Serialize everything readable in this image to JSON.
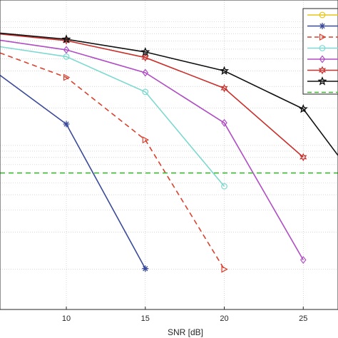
{
  "chart_data": {
    "type": "line",
    "xlabel": "SNR [dB]",
    "xlim": [
      5.8,
      27.2
    ],
    "ylim": [
      0,
      1
    ],
    "y_scale": "log",
    "grid": true,
    "legend_position": "top-right",
    "x_ticks": [
      {
        "value": 10,
        "label": "10"
      },
      {
        "value": 15,
        "label": "15"
      },
      {
        "value": 20,
        "label": "20"
      },
      {
        "value": 25,
        "label": "25"
      }
    ],
    "series": [
      {
        "color": "#e6c619",
        "marker": "circle",
        "dash": "solid",
        "points": []
      },
      {
        "color": "#3a4a9a",
        "marker": "asterisk",
        "dash": "solid",
        "points": [
          [
            5.8,
            0.757
          ],
          [
            10,
            0.599
          ],
          [
            15,
            0.132
          ]
        ]
      },
      {
        "color": "#d9412e",
        "marker": "triangle-right",
        "dash": "dashed",
        "points": [
          [
            5.8,
            0.829
          ],
          [
            10,
            0.75
          ],
          [
            15,
            0.548
          ],
          [
            20,
            0.13
          ]
        ]
      },
      {
        "color": "#7dd9d0",
        "marker": "circle",
        "dash": "solid",
        "points": [
          [
            5.8,
            0.849
          ],
          [
            10,
            0.817
          ],
          [
            15,
            0.703
          ],
          [
            20,
            0.398
          ]
        ]
      },
      {
        "color": "#b04cc4",
        "marker": "diamond",
        "dash": "solid",
        "points": [
          [
            5.8,
            0.87
          ],
          [
            10,
            0.839
          ],
          [
            15,
            0.765
          ],
          [
            20,
            0.603
          ],
          [
            25,
            0.16
          ]
        ]
      },
      {
        "color": "#c9302c",
        "marker": "hexagram",
        "dash": "solid",
        "points": [
          [
            5.8,
            0.89
          ],
          [
            10,
            0.869
          ],
          [
            15,
            0.814
          ],
          [
            20,
            0.715
          ],
          [
            25,
            0.492
          ]
        ]
      },
      {
        "color": "#111111",
        "marker": "pentagram",
        "dash": "solid",
        "points": [
          [
            5.8,
            0.893
          ],
          [
            10,
            0.873
          ],
          [
            15,
            0.832
          ],
          [
            20,
            0.771
          ],
          [
            25,
            0.648
          ],
          [
            27.2,
            0.498
          ]
        ]
      },
      {
        "color": "#3cb930",
        "marker": "none",
        "dash": "dashed",
        "horizontal_y": 0.441,
        "points": []
      }
    ]
  }
}
